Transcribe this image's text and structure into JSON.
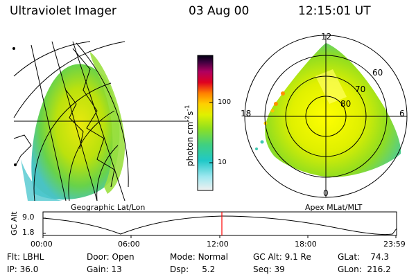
{
  "header": {
    "title": "Ultraviolet Imager",
    "date": "03 Aug 00",
    "time": "12:15:01 UT"
  },
  "captions": {
    "left": "Geographic Lat/Lon",
    "right": "Apex MLat/MLT"
  },
  "colorbar": {
    "unit_main": "photon cm",
    "unit_exp1": "-2",
    "unit_mid": "s",
    "unit_exp2": "-1",
    "ticks": [
      "100",
      "10"
    ]
  },
  "polar": {
    "labels": {
      "top": "12",
      "right": "6",
      "left": "18",
      "bottom": "0"
    },
    "rings": [
      "60",
      "70",
      "80"
    ]
  },
  "timeline": {
    "ylabel": "GC Alt",
    "yticks": [
      "9.0",
      "1.8"
    ],
    "xticks": [
      "00:00",
      "06:00",
      "12:00",
      "18:00",
      "23:59"
    ],
    "marker_time": "12:15"
  },
  "info": {
    "row1": [
      {
        "label": "Flt:",
        "value": "LBHL"
      },
      {
        "label": "Door:",
        "value": "Open"
      },
      {
        "label": "Mode:",
        "value": "Normal"
      },
      {
        "label": "GC Alt:",
        "value": "9.1 Re"
      },
      {
        "label": "GLat:",
        "value": "74.3"
      }
    ],
    "row2": [
      {
        "label": "IP:",
        "value": "36.0"
      },
      {
        "label": "Gain:",
        "value": "13"
      },
      {
        "label": "Dsp:",
        "value": "5.2"
      },
      {
        "label": "Seq:",
        "value": "39"
      },
      {
        "label": "GLon:",
        "value": "216.2"
      }
    ]
  },
  "colors": {
    "marker": "#ff0000"
  }
}
